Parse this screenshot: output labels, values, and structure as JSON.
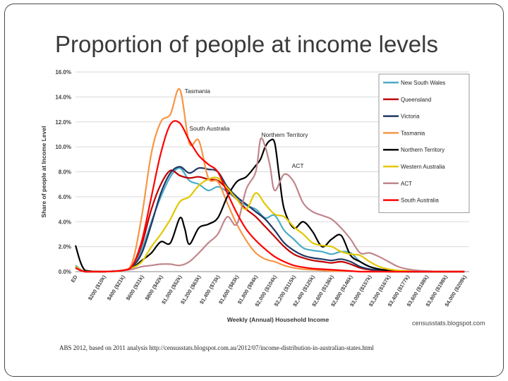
{
  "slide": {
    "title": "Proportion of people at income levels",
    "credit": "censusstats.blogspot.com",
    "source": "ABS 2012, based on 2011 analysis http://censusstats.blogspot.com.au/2012/07/income-distribution-in-australian-states.html"
  },
  "chart_data": {
    "type": "line",
    "title": "",
    "xlabel": "Weekly (Annual) Household Income",
    "ylabel": "Share of people at Income Level",
    "ylim": [
      0,
      16
    ],
    "yticks": [
      "0.0%",
      "2.0%",
      "4.0%",
      "6.0%",
      "8.0%",
      "10.0%",
      "12.0%",
      "14.0%",
      "16.0%"
    ],
    "xlim": [
      0,
      4000
    ],
    "xticks": [
      {
        "v": -100,
        "label": "ED"
      },
      {
        "v": 200,
        "label": "$200 ($10k)"
      },
      {
        "v": 400,
        "label": "$400 ($21k)"
      },
      {
        "v": 600,
        "label": "$600 ($31k)"
      },
      {
        "v": 800,
        "label": "$800 ($42k)"
      },
      {
        "v": 1000,
        "label": "$1,000 ($52k)"
      },
      {
        "v": 1200,
        "label": "$1,200 ($63k)"
      },
      {
        "v": 1400,
        "label": "$1,400 ($73k)"
      },
      {
        "v": 1600,
        "label": "$1,600 ($83k)"
      },
      {
        "v": 1800,
        "label": "$1,800 ($94k)"
      },
      {
        "v": 2000,
        "label": "$2,000 ($104k)"
      },
      {
        "v": 2200,
        "label": "$2,200 ($115k)"
      },
      {
        "v": 2400,
        "label": "$2,400 ($125k)"
      },
      {
        "v": 2600,
        "label": "$2,600 ($136k)"
      },
      {
        "v": 2800,
        "label": "$2,800 ($146k)"
      },
      {
        "v": 3000,
        "label": "$3,000 ($157k)"
      },
      {
        "v": 3200,
        "label": "$3,200 ($167k)"
      },
      {
        "v": 3400,
        "label": "$3,400 ($177k)"
      },
      {
        "v": 3600,
        "label": "$3,600 ($188k)"
      },
      {
        "v": 3800,
        "label": "$3,800 ($198k)"
      },
      {
        "v": 4000,
        "label": "$4,000 ($209k)"
      }
    ],
    "legend_position": "top-right",
    "series": [
      {
        "name": "New South Wales",
        "color": "#4aacc6",
        "x": [
          -100,
          0,
          200,
          400,
          500,
          600,
          700,
          800,
          900,
          1000,
          1100,
          1200,
          1300,
          1400,
          1500,
          1600,
          1700,
          1800,
          1900,
          2000,
          2100,
          2200,
          2300,
          2400,
          2500,
          2600,
          2700,
          2800,
          2900,
          3000,
          3100,
          3200,
          3300,
          3400,
          3600,
          3800,
          4000
        ],
        "values": [
          0.5,
          0.0,
          0.0,
          0.1,
          0.4,
          1.8,
          4.0,
          6.0,
          7.6,
          8.3,
          7.3,
          7.0,
          6.5,
          6.8,
          6.4,
          5.8,
          5.3,
          5.0,
          4.3,
          4.5,
          3.3,
          2.6,
          1.9,
          1.7,
          1.6,
          1.4,
          1.6,
          1.5,
          0.8,
          0.4,
          0.2,
          0.1,
          0.05,
          0.0,
          0.0,
          0.0,
          0.0
        ]
      },
      {
        "name": "Queensland",
        "color": "#c00000",
        "x": [
          -100,
          0,
          200,
          400,
          500,
          600,
          700,
          800,
          900,
          1000,
          1100,
          1200,
          1300,
          1400,
          1500,
          1600,
          1700,
          1800,
          1900,
          2000,
          2100,
          2200,
          2300,
          2400,
          2500,
          2600,
          2700,
          2800,
          2900,
          3000,
          3100,
          3200,
          3300,
          3400,
          3600,
          3800,
          4000
        ],
        "values": [
          0.3,
          0.0,
          0.0,
          0.1,
          0.5,
          2.2,
          5.0,
          7.0,
          8.1,
          7.7,
          7.5,
          7.6,
          7.4,
          7.3,
          6.6,
          5.8,
          5.0,
          4.4,
          3.6,
          2.8,
          2.0,
          1.4,
          1.1,
          0.9,
          0.8,
          0.7,
          0.8,
          0.6,
          0.3,
          0.15,
          0.05,
          0.0,
          0.0,
          0.0,
          0.0,
          0.0,
          0.0
        ]
      },
      {
        "name": "Victoria",
        "color": "#1f3864",
        "x": [
          -100,
          0,
          200,
          400,
          500,
          600,
          700,
          800,
          900,
          1000,
          1100,
          1200,
          1300,
          1400,
          1500,
          1600,
          1700,
          1800,
          1900,
          2000,
          2100,
          2200,
          2300,
          2400,
          2500,
          2600,
          2700,
          2800,
          2900,
          3000,
          3100,
          3200,
          3300,
          3400,
          3600,
          3800,
          4000
        ],
        "values": [
          0.4,
          0.0,
          0.0,
          0.1,
          0.4,
          1.5,
          3.8,
          6.3,
          7.9,
          8.4,
          7.9,
          8.3,
          8.2,
          8.0,
          6.8,
          6.0,
          5.4,
          4.8,
          4.2,
          3.3,
          2.3,
          1.7,
          1.3,
          1.1,
          1.0,
          0.9,
          1.0,
          0.8,
          0.4,
          0.2,
          0.1,
          0.0,
          0.0,
          0.0,
          0.0,
          0.0,
          0.0
        ]
      },
      {
        "name": "Tasmania",
        "color": "#f79646",
        "x": [
          -100,
          0,
          200,
          400,
          500,
          600,
          700,
          800,
          900,
          1000,
          1100,
          1200,
          1300,
          1400,
          1500,
          1600,
          1700,
          1800,
          1900,
          2000,
          2100,
          2200,
          2300,
          2400,
          2500,
          2600,
          2700,
          2800,
          2900,
          3000,
          3100,
          3200,
          3300,
          3400,
          3600,
          3800,
          4000
        ],
        "values": [
          0.4,
          0.0,
          0.0,
          0.1,
          0.8,
          4.5,
          9.5,
          12.0,
          12.6,
          14.6,
          10.3,
          10.5,
          7.5,
          7.2,
          5.5,
          3.8,
          2.5,
          1.5,
          1.0,
          0.8,
          0.5,
          0.3,
          0.2,
          0.15,
          0.1,
          0.05,
          0.05,
          0.05,
          0.0,
          0.0,
          0.0,
          0.0,
          0.0,
          0.0,
          0.0,
          0.0,
          0.0
        ]
      },
      {
        "name": "Northern Territory",
        "color": "#000000",
        "x": [
          -100,
          0,
          200,
          400,
          500,
          600,
          700,
          800,
          900,
          1000,
          1050,
          1100,
          1200,
          1300,
          1400,
          1500,
          1600,
          1700,
          1800,
          1850,
          1900,
          1950,
          2000,
          2050,
          2100,
          2200,
          2300,
          2400,
          2500,
          2600,
          2700,
          2800,
          2900,
          3000,
          3100,
          3200,
          3300,
          3400,
          3600,
          3800,
          4000
        ],
        "values": [
          2.1,
          0.1,
          0.0,
          0.1,
          0.3,
          0.9,
          1.5,
          2.4,
          2.3,
          4.3,
          3.5,
          2.2,
          3.5,
          3.8,
          4.3,
          6.0,
          7.2,
          7.6,
          8.5,
          9.0,
          10.0,
          10.5,
          10.3,
          7.5,
          5.0,
          3.5,
          4.0,
          3.2,
          2.0,
          2.6,
          2.9,
          1.3,
          0.8,
          0.4,
          0.2,
          0.1,
          0.05,
          0.0,
          0.0,
          0.0,
          0.0
        ]
      },
      {
        "name": "Western Australia",
        "color": "#e2c800",
        "x": [
          -100,
          0,
          200,
          400,
          500,
          600,
          700,
          800,
          900,
          1000,
          1100,
          1200,
          1300,
          1400,
          1500,
          1600,
          1700,
          1800,
          1900,
          2000,
          2100,
          2200,
          2300,
          2400,
          2500,
          2600,
          2700,
          2800,
          2900,
          3000,
          3100,
          3200,
          3300,
          3400,
          3600,
          3800,
          4000
        ],
        "values": [
          0.4,
          0.0,
          0.0,
          0.1,
          0.3,
          0.8,
          2.0,
          3.0,
          4.2,
          5.6,
          6.0,
          6.9,
          7.4,
          7.5,
          6.7,
          5.8,
          5.0,
          6.3,
          5.4,
          4.6,
          4.4,
          3.6,
          3.0,
          2.3,
          2.1,
          2.0,
          1.6,
          1.4,
          1.3,
          0.8,
          0.4,
          0.2,
          0.1,
          0.05,
          0.0,
          0.0,
          0.0
        ]
      },
      {
        "name": "ACT",
        "color": "#c0868c",
        "x": [
          -100,
          0,
          200,
          400,
          500,
          600,
          700,
          800,
          900,
          1000,
          1100,
          1200,
          1300,
          1400,
          1500,
          1600,
          1700,
          1800,
          1850,
          1900,
          1950,
          2000,
          2100,
          2200,
          2300,
          2400,
          2500,
          2600,
          2700,
          2800,
          2900,
          3000,
          3100,
          3200,
          3300,
          3400,
          3500,
          3600,
          3800,
          4000
        ],
        "values": [
          0.3,
          0.0,
          0.0,
          0.1,
          0.2,
          0.4,
          0.5,
          0.6,
          0.6,
          0.5,
          0.8,
          1.5,
          2.3,
          3.0,
          4.4,
          3.8,
          6.6,
          8.0,
          10.6,
          10.0,
          8.5,
          6.5,
          7.8,
          7.2,
          5.5,
          4.8,
          4.5,
          4.2,
          3.5,
          2.6,
          1.5,
          1.5,
          1.2,
          0.8,
          0.4,
          0.2,
          0.1,
          0.05,
          0.0,
          0.0
        ]
      },
      {
        "name": "South Australia",
        "color": "#ff0000",
        "x": [
          -100,
          0,
          200,
          400,
          500,
          600,
          700,
          800,
          900,
          1000,
          1100,
          1200,
          1300,
          1400,
          1500,
          1600,
          1700,
          1800,
          1900,
          2000,
          2100,
          2200,
          2300,
          2400,
          2500,
          2600,
          2700,
          2800,
          2900,
          3000,
          3100,
          3200,
          3300,
          3400,
          3600,
          3800,
          4000
        ],
        "values": [
          0.3,
          0.0,
          0.0,
          0.1,
          0.5,
          2.5,
          6.0,
          9.5,
          11.8,
          11.9,
          10.5,
          9.3,
          8.6,
          8.0,
          6.3,
          4.7,
          3.4,
          2.5,
          1.8,
          1.2,
          0.8,
          0.5,
          0.35,
          0.25,
          0.2,
          0.15,
          0.1,
          0.05,
          0.0,
          0.0,
          0.0,
          0.0,
          0.0,
          0.0,
          0.0,
          0.0,
          0.0
        ]
      }
    ],
    "annotations": [
      {
        "text": "Tasmania",
        "x": 1050,
        "y": 14.3
      },
      {
        "text": "South Australia",
        "x": 1100,
        "y": 11.3
      },
      {
        "text": "Northern Territory",
        "x": 1860,
        "y": 10.8
      },
      {
        "text": "ACT",
        "x": 2180,
        "y": 8.3
      }
    ]
  }
}
